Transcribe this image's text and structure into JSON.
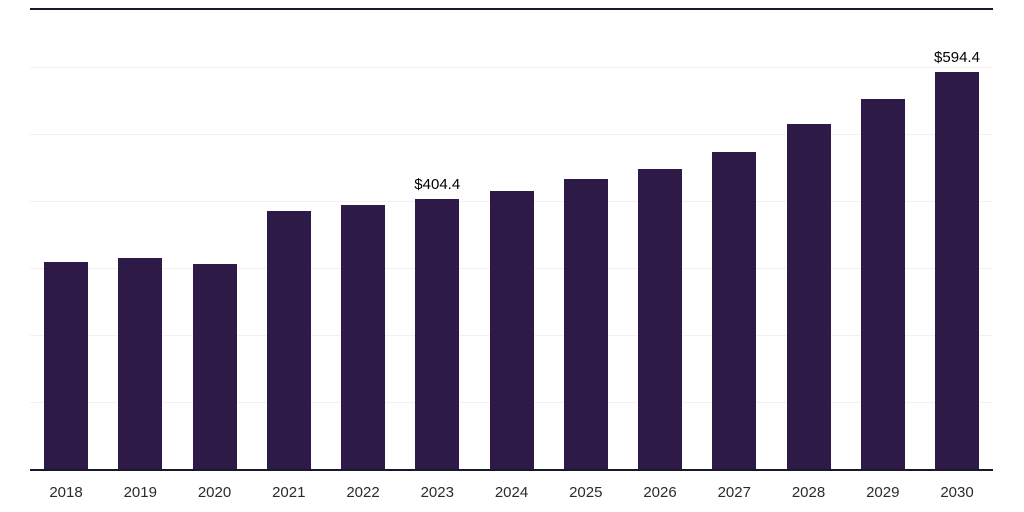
{
  "chart_data": {
    "type": "bar",
    "title": "",
    "xlabel": "",
    "ylabel": "",
    "categories": [
      "2018",
      "2019",
      "2020",
      "2021",
      "2022",
      "2023",
      "2024",
      "2025",
      "2026",
      "2027",
      "2028",
      "2029",
      "2030"
    ],
    "values": [
      310,
      317,
      307,
      387,
      396,
      404.4,
      417,
      434,
      449,
      475,
      517,
      554,
      594.4
    ],
    "data_labels": [
      {
        "category": "2023",
        "text": "$404.4"
      },
      {
        "category": "2030",
        "text": "$594.4"
      }
    ],
    "ylim": [
      0,
      600
    ],
    "gridline_step": 100,
    "grid": "horizontal, faint, no y-axis tick labels",
    "legend": "none",
    "colors": {
      "bar": "#2e1a47",
      "axis": "#17172e",
      "top_border": "#17172e",
      "gridline": "#f5eef2",
      "value_label": "#000000",
      "tick_label": "#2b2b2b",
      "background": "#ffffff"
    }
  }
}
